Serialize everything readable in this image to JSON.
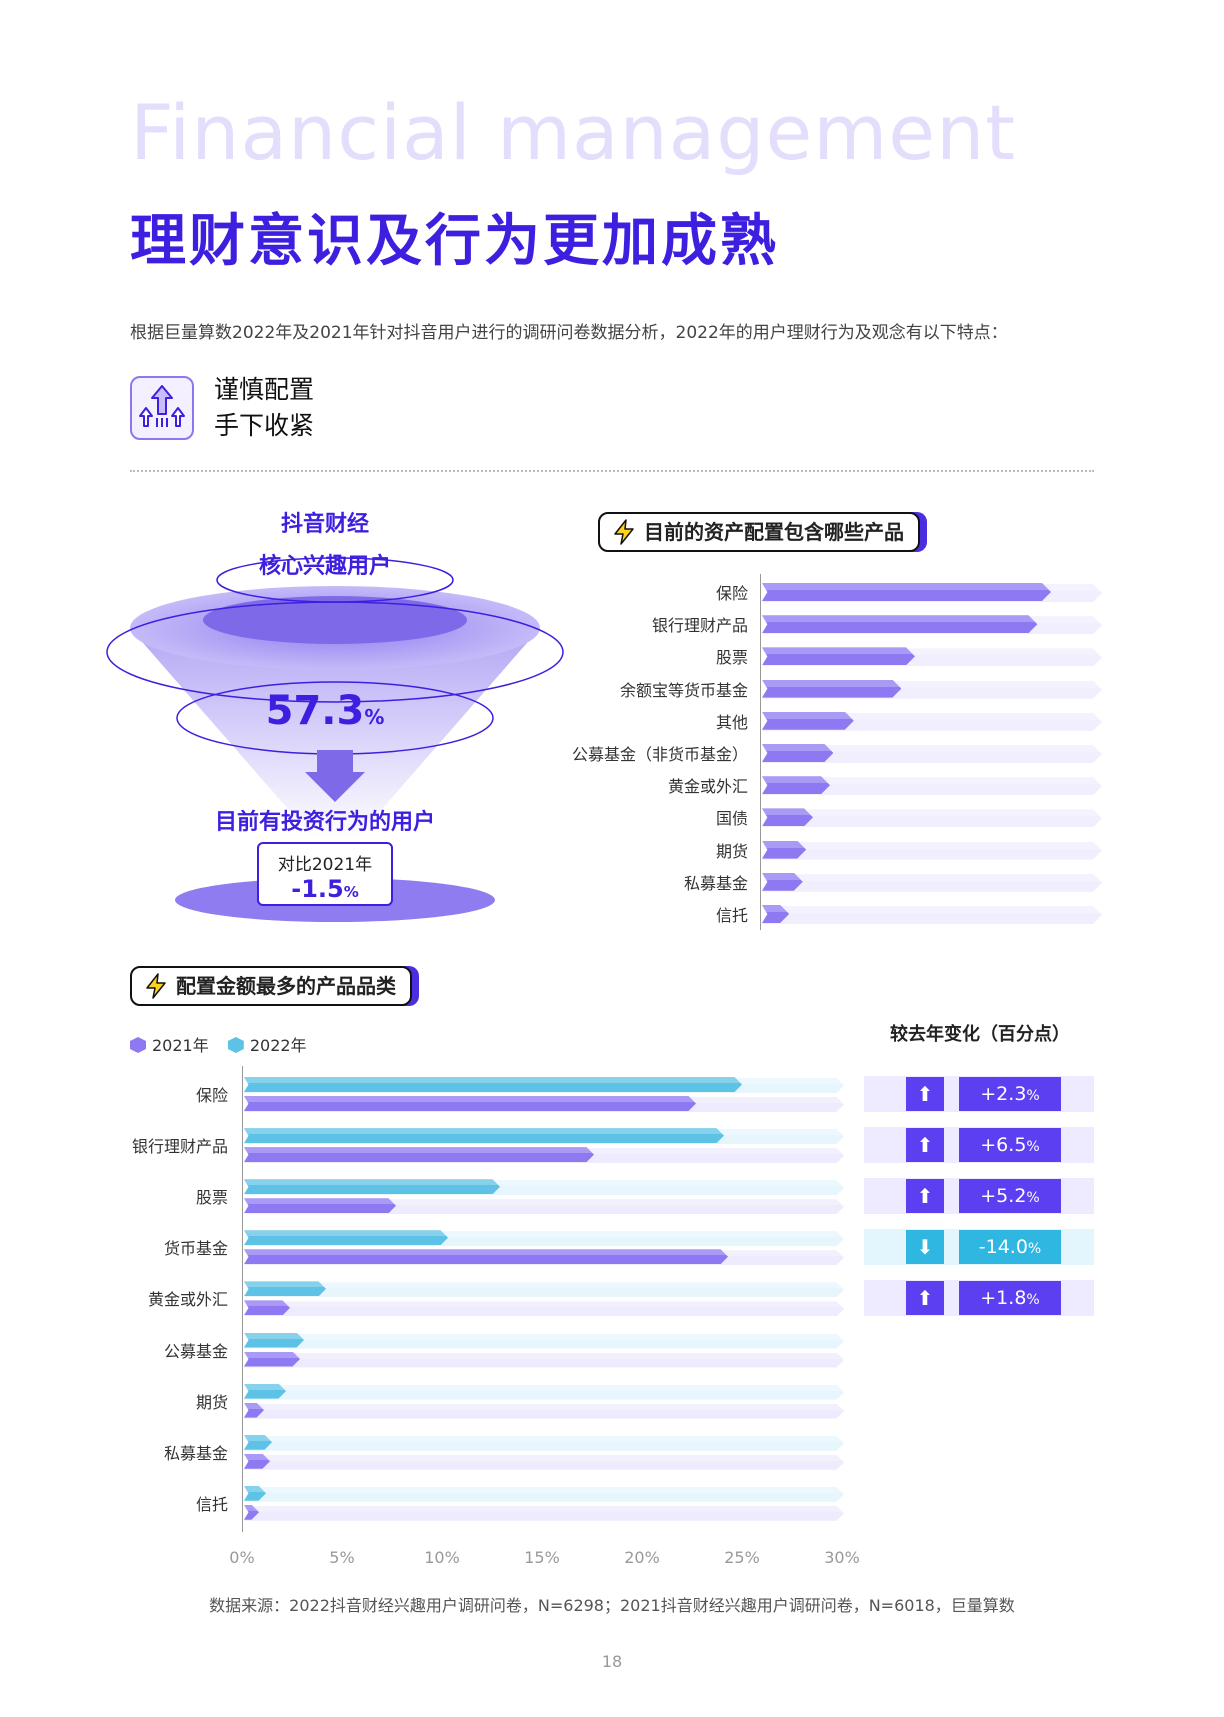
{
  "header": {
    "eng_title": "Financial management",
    "cn_title": "理财意识及行为更加成熟",
    "intro": "根据巨量算数2022年及2021年针对抖音用户进行的调研问卷数据分析，2022年的用户理财行为及观念有以下特点："
  },
  "feature": {
    "icon": "rising-arrows-icon",
    "line1": "谨慎配置",
    "line2": "手下收紧"
  },
  "funnel": {
    "top_line1": "抖音财经",
    "top_line2": "核心兴趣用户",
    "value": "57.3",
    "value_unit": "%",
    "label": "目前有投资行为的用户",
    "compare_label": "对比2021年",
    "compare_value": "-1.5",
    "compare_unit": "%",
    "colors": {
      "primary": "#3d1fe0",
      "funnel": "#8e7cf0"
    }
  },
  "chart_data": [
    {
      "type": "bar",
      "title": "目前的资产配置包含哪些产品",
      "categories": [
        "保险",
        "银行理财产品",
        "股票",
        "余额宝等货币基金",
        "其他",
        "公募基金（非货币基金）",
        "黄金或外汇",
        "国债",
        "期货",
        "私募基金",
        "信托"
      ],
      "values": [
        85,
        81,
        45,
        41,
        27,
        21,
        20,
        15,
        13,
        12,
        8
      ],
      "ylim": [
        0,
        100
      ],
      "colors": {
        "bar": "#8f79f2",
        "track": "#f1eefe"
      }
    },
    {
      "type": "bar",
      "title": "配置金额最多的产品品类",
      "categories": [
        "保险",
        "银行理财产品",
        "股票",
        "货币基金",
        "黄金或外汇",
        "公募基金",
        "期货",
        "私募基金",
        "信托"
      ],
      "series": [
        {
          "name": "2021年",
          "values": [
            22.6,
            17.5,
            7.6,
            24.2,
            2.3,
            2.8,
            1.0,
            1.3,
            0.7
          ],
          "color": "#8f79f2"
        },
        {
          "name": "2022年",
          "values": [
            24.9,
            24.0,
            12.8,
            10.2,
            4.1,
            3.0,
            2.1,
            1.4,
            1.1
          ],
          "color": "#5ec2e6"
        }
      ],
      "xticks": [
        "0%",
        "5%",
        "10%",
        "15%",
        "20%",
        "25%",
        "30%"
      ],
      "xlim": [
        0,
        30
      ],
      "legend": "top-left"
    }
  ],
  "change_panel": {
    "title": "较去年变化（百分点）",
    "rows": [
      {
        "value": "+2.3",
        "unit": "%",
        "direction": "up"
      },
      {
        "value": "+6.5",
        "unit": "%",
        "direction": "up"
      },
      {
        "value": "+5.2",
        "unit": "%",
        "direction": "up"
      },
      {
        "value": "-14.0",
        "unit": "%",
        "direction": "down"
      },
      {
        "value": "+1.8",
        "unit": "%",
        "direction": "up"
      }
    ]
  },
  "footer": {
    "source": "数据来源：2022抖音财经兴趣用户调研问卷，N=6298；2021抖音财经兴趣用户调研问卷，N=6018，巨量算数",
    "page": "18"
  }
}
